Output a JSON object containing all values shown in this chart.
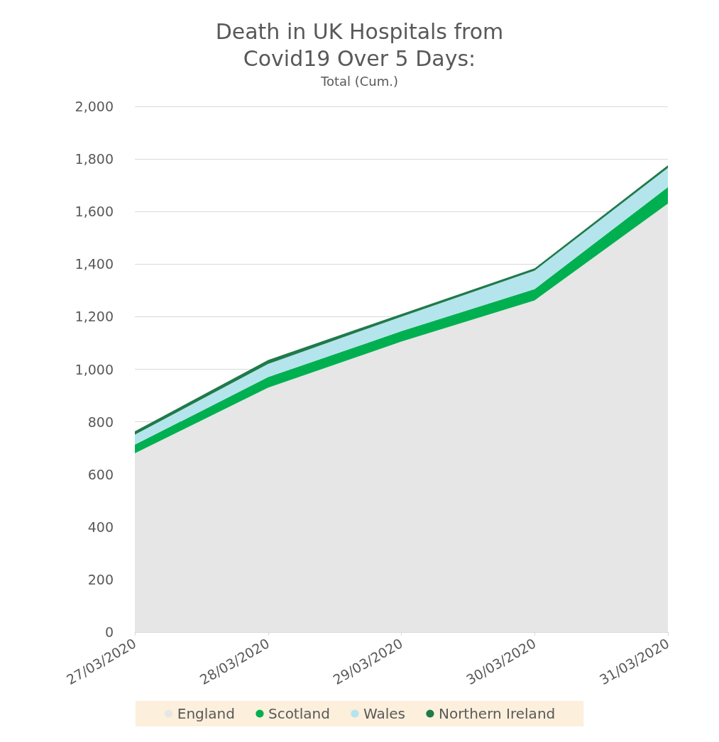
{
  "chart_data": {
    "type": "area",
    "stacked": true,
    "title": "Death in UK Hospitals from\nCovid19 Over 5 Days:",
    "subtitle": "Total (Cum.)",
    "categories": [
      "27/03/2020",
      "28/03/2020",
      "29/03/2020",
      "30/03/2020",
      "31/03/2020"
    ],
    "series": [
      {
        "name": "England",
        "color": "#e6e6e6",
        "values": [
          680,
          930,
          1105,
          1262,
          1630
        ]
      },
      {
        "name": "Scotland",
        "color": "#00b050",
        "values": [
          33,
          40,
          40,
          43,
          63
        ]
      },
      {
        "name": "Wales",
        "color": "#b4e4ec",
        "values": [
          38,
          50,
          55,
          70,
          73
        ]
      },
      {
        "name": "Northern Ireland",
        "color": "#1f7a4a",
        "values": [
          13,
          15,
          10,
          9,
          10
        ]
      }
    ],
    "ylim": [
      0,
      2000
    ],
    "yticks": [
      0,
      200,
      400,
      600,
      800,
      {
        "value": 1000,
        "label": "1,000"
      },
      {
        "value": 1200,
        "label": "1,200"
      },
      {
        "value": 1400,
        "label": "1,400"
      },
      {
        "value": 1600,
        "label": "1,600"
      },
      {
        "value": 1800,
        "label": "1,800"
      },
      {
        "value": 2000,
        "label": "2,000"
      }
    ],
    "grid": "y",
    "legend": "bottom"
  }
}
